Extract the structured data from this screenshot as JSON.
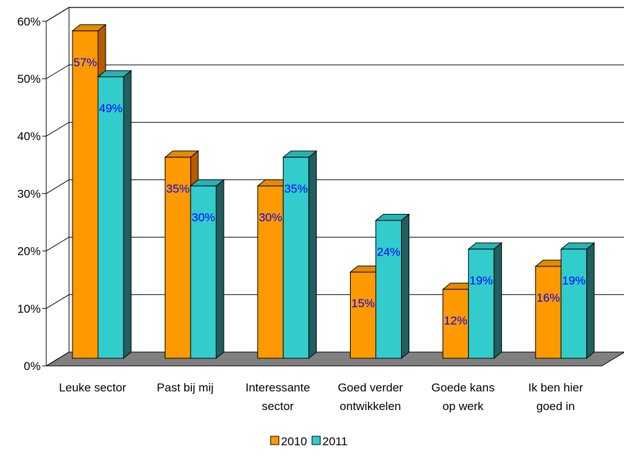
{
  "chart_data": {
    "type": "bar",
    "style": "3d-clustered-column",
    "categories": [
      [
        "Leuke sector"
      ],
      [
        "Past bij mij"
      ],
      [
        "Interessante",
        "sector"
      ],
      [
        "Goed verder",
        "ontwikkelen"
      ],
      [
        "Goede kans",
        "op werk"
      ],
      [
        "Ik ben hier",
        "goed in"
      ]
    ],
    "series": [
      {
        "name": "2010",
        "values": [
          57,
          35,
          30,
          15,
          12,
          16
        ],
        "color": "#FF9900",
        "side_color": "#B35C00",
        "top_color": "#E68A00"
      },
      {
        "name": "2011",
        "values": [
          49,
          30,
          35,
          24,
          19,
          19
        ],
        "color": "#33CCCC",
        "side_color": "#1F5F5F",
        "top_color": "#2AB3B3"
      }
    ],
    "data_labels": {
      "2010": [
        "57%",
        "35%",
        "30%",
        "15%",
        "12%",
        "16%"
      ],
      "2011": [
        "49%",
        "30%",
        "35%",
        "24%",
        "19%",
        "19%"
      ],
      "color": "#0000FF"
    },
    "y_ticks": [
      "0%",
      "10%",
      "20%",
      "30%",
      "40%",
      "50%",
      "60%"
    ],
    "ylim": [
      0,
      60
    ],
    "grid": true,
    "floor_color": "#808080",
    "legend": {
      "placement": "bottom",
      "entries": [
        "2010",
        "2011"
      ]
    }
  }
}
